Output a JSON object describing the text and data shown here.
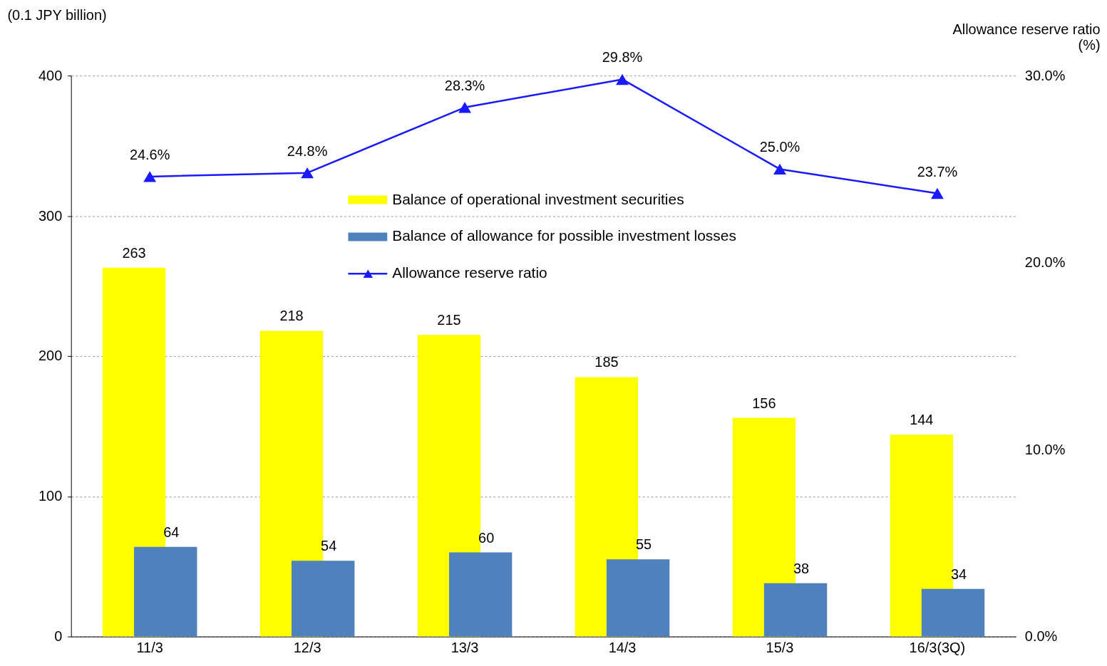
{
  "chart_data": {
    "type": "bar",
    "categories": [
      "11/3",
      "12/3",
      "13/3",
      "14/3",
      "15/3",
      "16/3(3Q)"
    ],
    "series": [
      {
        "name": "Balance of operational investment securities",
        "type": "bar",
        "color": "#ffff00",
        "values": [
          263,
          218,
          215,
          185,
          156,
          144
        ]
      },
      {
        "name": "Balance of allowance for possible investment losses",
        "type": "bar",
        "color": "#4f81bd",
        "values": [
          64,
          54,
          60,
          55,
          38,
          34
        ]
      },
      {
        "name": "Allowance reserve ratio",
        "type": "line",
        "axis": "y2",
        "color": "#1a1aff",
        "marker": "triangle",
        "values": [
          24.6,
          24.8,
          28.3,
          29.8,
          25.0,
          23.7
        ],
        "value_labels": [
          "24.6%",
          "24.8%",
          "28.3%",
          "29.8%",
          "25.0%",
          "23.7%"
        ]
      }
    ],
    "ylabel": "(0.1 JPY billion)",
    "y2label": "Allowance reserve ratio\n(%)",
    "ylim": [
      0,
      400
    ],
    "yticks": [
      0,
      100,
      200,
      300,
      400
    ],
    "y2lim": [
      0,
      30
    ],
    "y2ticks": [
      {
        "value": 0,
        "label": "0.0%"
      },
      {
        "value": 10,
        "label": "10.0%"
      },
      {
        "value": 20,
        "label": "20.0%"
      },
      {
        "value": 30,
        "label": "30.0%"
      }
    ],
    "grid": "y",
    "legend": "top",
    "data_labels": true
  }
}
